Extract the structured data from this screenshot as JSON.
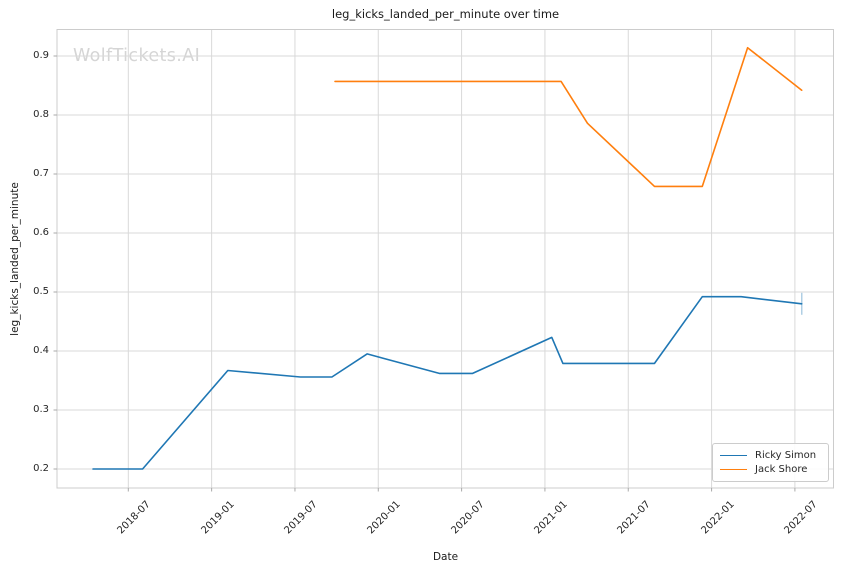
{
  "title": "leg_kicks_landed_per_minute over time",
  "watermark": "WolfTickets.AI",
  "axes": {
    "x_label": "Date",
    "y_label": "leg_kicks_landed_per_minute",
    "x_ticks": [
      "2018-07",
      "2019-01",
      "2019-07",
      "2020-01",
      "2020-07",
      "2021-01",
      "2021-07",
      "2022-01",
      "2022-07"
    ],
    "y_ticks": [
      "0.2",
      "0.3",
      "0.4",
      "0.5",
      "0.6",
      "0.7",
      "0.8",
      "0.9"
    ]
  },
  "colors": {
    "ricky_simon": "#1f77b4",
    "jack_shore": "#ff7f0e",
    "grid": "#d9d9d9",
    "spine": "#cccccc",
    "tick_mark": "#aaaaaa",
    "text": "#262626",
    "watermark": "#d5d5d5"
  },
  "legend": {
    "position": "lower right",
    "entries": [
      "Ricky Simon",
      "Jack Shore"
    ]
  },
  "chart_data": {
    "type": "line",
    "title": "leg_kicks_landed_per_minute over time",
    "xlabel": "Date",
    "ylabel": "leg_kicks_landed_per_minute",
    "ylim": [
      0.168,
      0.945
    ],
    "xlim": [
      "2018-01-26",
      "2022-09-24"
    ],
    "grid": true,
    "legend_position": "lower right",
    "series": [
      {
        "name": "Ricky Simon",
        "color": "#1f77b4",
        "end_tick": true,
        "x": [
          "2018-04-15",
          "2018-08-02",
          "2019-02-06",
          "2019-07-13",
          "2019-09-21",
          "2019-12-07",
          "2020-05-13",
          "2020-07-25",
          "2021-01-16",
          "2021-02-10",
          "2021-08-28",
          "2021-12-11",
          "2022-03-05",
          "2022-07-16"
        ],
        "values": [
          0.2,
          0.2,
          0.367,
          0.356,
          0.356,
          0.395,
          0.362,
          0.362,
          0.423,
          0.379,
          0.379,
          0.492,
          0.492,
          0.48
        ]
      },
      {
        "name": "Jack Shore",
        "color": "#ff7f0e",
        "end_tick": false,
        "x": [
          "2019-09-28",
          "2021-02-06",
          "2021-04-03",
          "2021-08-28",
          "2021-12-11",
          "2022-03-19",
          "2022-07-16"
        ],
        "values": [
          0.857,
          0.857,
          0.786,
          0.679,
          0.679,
          0.914,
          0.842
        ]
      }
    ]
  }
}
